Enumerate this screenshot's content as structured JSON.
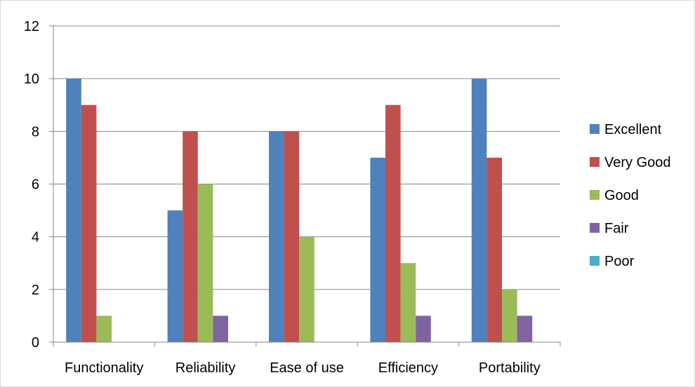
{
  "chart_data": {
    "type": "bar",
    "categories": [
      "Functionality",
      "Reliability",
      "Ease of use",
      "Efficiency",
      "Portability"
    ],
    "series": [
      {
        "name": "Excellent",
        "color": "#4f81bd",
        "values": [
          10,
          5,
          8,
          7,
          10
        ]
      },
      {
        "name": "Very Good",
        "color": "#c0504d",
        "values": [
          9,
          8,
          8,
          9,
          7
        ]
      },
      {
        "name": "Good",
        "color": "#9bbb59",
        "values": [
          1,
          6,
          4,
          3,
          2
        ]
      },
      {
        "name": "Fair",
        "color": "#8064a2",
        "values": [
          0,
          1,
          0,
          1,
          1
        ]
      },
      {
        "name": "Poor",
        "color": "#4bacc6",
        "values": [
          0,
          0,
          0,
          0,
          0
        ]
      }
    ],
    "ylim": [
      0,
      12
    ],
    "yticks": [
      0,
      2,
      4,
      6,
      8,
      10,
      12
    ],
    "title": "",
    "xlabel": "",
    "ylabel": "",
    "grid": true,
    "legend": "right"
  }
}
